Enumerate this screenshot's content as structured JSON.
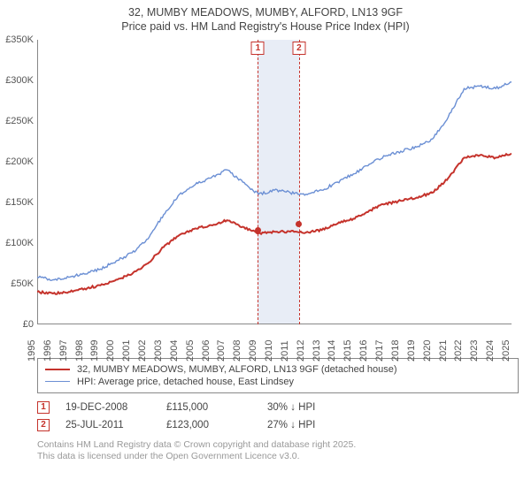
{
  "title_line1": "32, MUMBY MEADOWS, MUMBY, ALFORD, LN13 9GF",
  "title_line2": "Price paid vs. HM Land Registry's House Price Index (HPI)",
  "chart": {
    "type": "line",
    "background_color": "#ffffff",
    "shade_color": "#e8edf6",
    "axis_color": "#888888",
    "x_start_year": 1995,
    "x_end_year": 2025,
    "x_tick_step": 1,
    "y_min": 0,
    "y_max": 350000,
    "y_tick_step": 50000,
    "y_tick_labels": [
      "£0",
      "£50K",
      "£100K",
      "£150K",
      "£200K",
      "£250K",
      "£300K",
      "£350K"
    ],
    "series_red": {
      "label": "32, MUMBY MEADOWS, MUMBY, ALFORD, LN13 9GF (detached house)",
      "color": "#c5332c",
      "line_width": 2,
      "values_by_year": {
        "1995": 40000,
        "1996": 38000,
        "1997": 40000,
        "1998": 44000,
        "1999": 48000,
        "2000": 55000,
        "2001": 62000,
        "2002": 75000,
        "2003": 95000,
        "2004": 110000,
        "2005": 118000,
        "2006": 122000,
        "2007": 128000,
        "2008": 120000,
        "2009": 112000,
        "2010": 114000,
        "2011": 114000,
        "2012": 113000,
        "2013": 116000,
        "2014": 124000,
        "2015": 130000,
        "2016": 140000,
        "2017": 148000,
        "2018": 152000,
        "2019": 156000,
        "2020": 162000,
        "2021": 180000,
        "2022": 205000,
        "2023": 208000,
        "2024": 205000,
        "2025": 210000
      }
    },
    "series_blue": {
      "label": "HPI: Average price, detached house, East Lindsey",
      "color": "#6b8fd4",
      "line_width": 1.4,
      "values_by_year": {
        "1995": 58000,
        "1996": 55000,
        "1997": 58000,
        "1998": 62000,
        "1999": 68000,
        "2000": 78000,
        "2001": 88000,
        "2002": 105000,
        "2003": 135000,
        "2004": 160000,
        "2005": 172000,
        "2006": 180000,
        "2007": 190000,
        "2008": 175000,
        "2009": 160000,
        "2010": 165000,
        "2011": 162000,
        "2012": 160000,
        "2013": 165000,
        "2014": 175000,
        "2015": 185000,
        "2016": 197000,
        "2017": 207000,
        "2018": 213000,
        "2019": 218000,
        "2020": 228000,
        "2021": 255000,
        "2022": 290000,
        "2023": 293000,
        "2024": 290000,
        "2025": 298000
      }
    },
    "sale_markers": [
      {
        "n": "1",
        "year_frac": 2008.96,
        "price": 115000,
        "color": "#c5332c"
      },
      {
        "n": "2",
        "year_frac": 2011.56,
        "price": 123000,
        "color": "#c5332c"
      }
    ]
  },
  "sale_rows": [
    {
      "n": "1",
      "date": "19-DEC-2008",
      "price": "£115,000",
      "hpi": "30% ↓ HPI",
      "color": "#c5332c"
    },
    {
      "n": "2",
      "date": "25-JUL-2011",
      "price": "£123,000",
      "hpi": "27% ↓ HPI",
      "color": "#c5332c"
    }
  ],
  "footer_line1": "Contains HM Land Registry data © Crown copyright and database right 2025.",
  "footer_line2": "This data is licensed under the Open Government Licence v3.0."
}
